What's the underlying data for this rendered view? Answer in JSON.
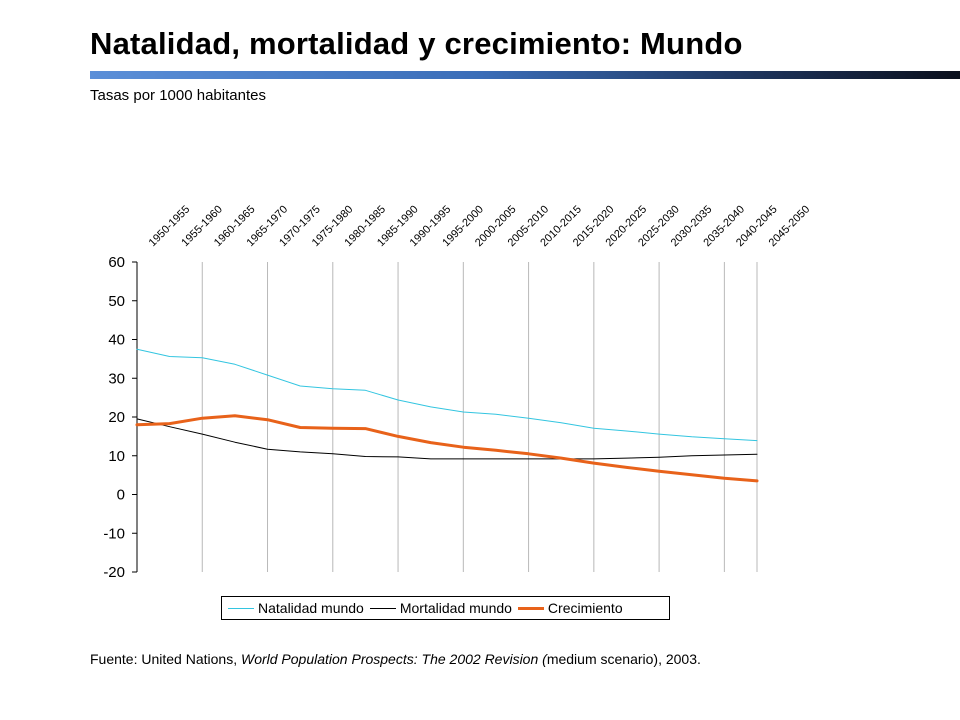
{
  "header": {
    "title": "Natalidad, mortalidad y crecimiento: Mundo",
    "subtitle": "Tasas por 1000 habitantes"
  },
  "footer": {
    "prefix": "Fuente: United Nations, ",
    "italic": "World Population Prospects: The 2002 Revision (",
    "suffix": "medium scenario), 2003."
  },
  "chart_data": {
    "type": "line",
    "categories": [
      "1950-1955",
      "1955-1960",
      "1960-1965",
      "1965-1970",
      "1970-1975",
      "1975-1980",
      "1980-1985",
      "1985-1990",
      "1990-1995",
      "1995-2000",
      "2000-2005",
      "2005-2010",
      "2010-2015",
      "2015-2020",
      "2020-2025",
      "2025-2030",
      "2030-2035",
      "2035-2040",
      "2040-2045",
      "2045-2050"
    ],
    "ylim": [
      -20,
      60
    ],
    "yticks": [
      60,
      50,
      40,
      30,
      20,
      10,
      0,
      -10,
      -20
    ],
    "grid": true,
    "legend_position": "bottom",
    "series": [
      {
        "name": "Natalidad mundo",
        "color": "#33c5e0",
        "width": 1,
        "values": [
          37.5,
          35.6,
          35.3,
          33.6,
          30.8,
          28.0,
          27.3,
          26.9,
          24.4,
          22.6,
          21.3,
          20.7,
          19.7,
          18.5,
          17.1,
          16.4,
          15.6,
          14.9,
          14.4,
          13.9
        ]
      },
      {
        "name": "Mortalidad mundo",
        "color": "#000000",
        "width": 1,
        "values": [
          19.5,
          17.5,
          15.6,
          13.5,
          11.7,
          11.0,
          10.5,
          9.8,
          9.7,
          9.2,
          9.2,
          9.2,
          9.2,
          9.2,
          9.2,
          9.4,
          9.6,
          10.0,
          10.2,
          10.4
        ]
      },
      {
        "name": "Crecimiento",
        "color": "#e8621a",
        "width": 3,
        "values": [
          18.0,
          18.3,
          19.7,
          20.3,
          19.3,
          17.3,
          17.1,
          17.0,
          15.0,
          13.4,
          12.2,
          11.4,
          10.5,
          9.4,
          8.1,
          7.0,
          6.0,
          5.1,
          4.2,
          3.5
        ]
      }
    ]
  }
}
